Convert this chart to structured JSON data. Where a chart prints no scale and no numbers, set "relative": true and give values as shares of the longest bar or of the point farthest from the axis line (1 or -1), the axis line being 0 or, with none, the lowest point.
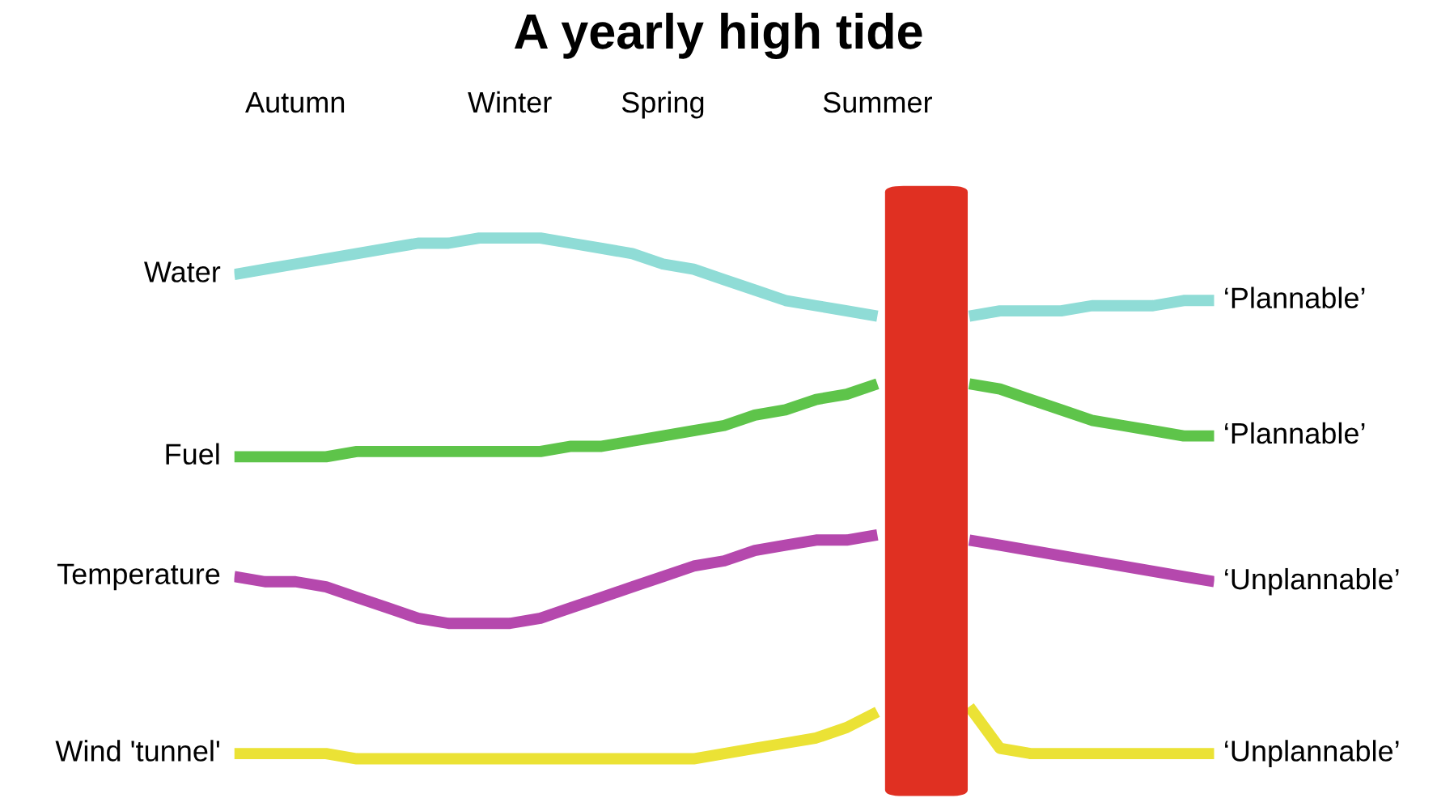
{
  "chart_data": {
    "type": "line",
    "title": "A yearly high tide",
    "relative": true,
    "tick_labels": "x",
    "grid": false,
    "legend": false,
    "categories": [
      null,
      null,
      "Autumn",
      null,
      null,
      null,
      null,
      null,
      null,
      "Winter",
      null,
      null,
      null,
      null,
      "Spring",
      null,
      null,
      null,
      null,
      null,
      null,
      "Summer",
      null,
      null,
      null,
      null,
      null,
      null,
      null,
      null,
      null,
      null,
      null
    ],
    "series": [
      {
        "name": "Water",
        "color": "#8fdcd6",
        "values": [
          0.93,
          0.94,
          0.95,
          0.96,
          0.97,
          0.98,
          0.99,
          0.99,
          1.0,
          1.0,
          1.0,
          0.99,
          0.98,
          0.97,
          0.95,
          0.94,
          0.92,
          0.9,
          0.88,
          0.87,
          0.86,
          0.85,
          null,
          null,
          0.85,
          0.86,
          0.86,
          0.86,
          0.87,
          0.87,
          0.87,
          0.88,
          0.88
        ]
      },
      {
        "name": "Fuel",
        "color": "#5ec44a",
        "values": [
          0.58,
          0.58,
          0.58,
          0.58,
          0.59,
          0.59,
          0.59,
          0.59,
          0.59,
          0.59,
          0.59,
          0.6,
          0.6,
          0.61,
          0.62,
          0.63,
          0.64,
          0.66,
          0.67,
          0.69,
          0.7,
          0.72,
          null,
          null,
          0.72,
          0.71,
          0.69,
          0.67,
          0.65,
          0.64,
          0.63,
          0.62,
          0.62
        ]
      },
      {
        "name": "Temperature",
        "color": "#b548ad",
        "values": [
          0.35,
          0.34,
          0.34,
          0.33,
          0.31,
          0.29,
          0.27,
          0.26,
          0.26,
          0.26,
          0.27,
          0.29,
          0.31,
          0.33,
          0.35,
          0.37,
          0.38,
          0.4,
          0.41,
          0.42,
          0.42,
          0.43,
          null,
          null,
          0.42,
          0.41,
          0.4,
          0.39,
          0.38,
          0.37,
          0.36,
          0.35,
          0.34
        ]
      },
      {
        "name": "Wind 'tunnel'",
        "color": "#ebe235",
        "values": [
          0.01,
          0.01,
          0.01,
          0.01,
          0.0,
          0.0,
          0.0,
          0.0,
          0.0,
          0.0,
          0.0,
          0.0,
          0.0,
          0.0,
          0.0,
          0.0,
          0.01,
          0.02,
          0.03,
          0.04,
          0.06,
          0.09,
          null,
          null,
          0.1,
          0.02,
          0.01,
          0.01,
          0.01,
          0.01,
          0.01,
          0.01,
          0.01
        ]
      }
    ],
    "annotations": [
      "‘Plannable’",
      "‘Plannable’",
      "‘Unplannable’",
      "‘Unplannable’"
    ]
  }
}
